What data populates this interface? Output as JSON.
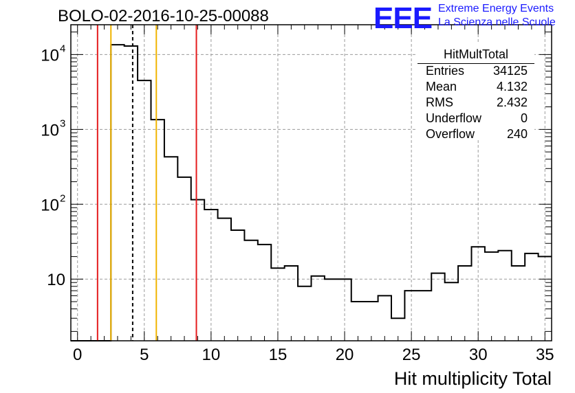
{
  "title": "BOLO-02-2016-10-25-00088",
  "logo": {
    "text": "EEE",
    "line1": "Extreme Energy Events",
    "line2": "La Scienza nelle Scuole",
    "color": "#1a1aff"
  },
  "stats": {
    "name": "HitMultTotal",
    "rows": [
      {
        "label": "Entries",
        "value": "34125"
      },
      {
        "label": "Mean",
        "value": "4.132"
      },
      {
        "label": "RMS",
        "value": "2.432"
      },
      {
        "label": "Underflow",
        "value": "0"
      },
      {
        "label": "Overflow",
        "value": "240"
      }
    ]
  },
  "chart_data": {
    "type": "histogram",
    "title": "BOLO-02-2016-10-25-00088",
    "xlabel": "Hit multiplicity Total",
    "ylabel": "",
    "yscale": "log",
    "xlim": [
      -0.5,
      35.5
    ],
    "ylim": [
      1.5,
      25000
    ],
    "grid": true,
    "x_ticks": [
      0,
      5,
      10,
      15,
      20,
      25,
      30,
      35
    ],
    "x_tick_labels": [
      "0",
      "5",
      "10",
      "15",
      "20",
      "25",
      "30",
      "35"
    ],
    "y_ticks": [
      10,
      100,
      1000,
      10000
    ],
    "y_tick_labels": [
      {
        "base": "10",
        "exp": ""
      },
      {
        "base": "10",
        "exp": "2"
      },
      {
        "base": "10",
        "exp": "3"
      },
      {
        "base": "10",
        "exp": "4"
      }
    ],
    "bin_edges_start": -0.5,
    "bin_width": 1,
    "counts": [
      0,
      0,
      0,
      13500,
      13000,
      4500,
      1350,
      430,
      230,
      115,
      85,
      65,
      45,
      33,
      29,
      14,
      15,
      8,
      11,
      10,
      10,
      5,
      5,
      6,
      3,
      7,
      7,
      12,
      9,
      15,
      27,
      23,
      24,
      15,
      22,
      20
    ],
    "lines": [
      {
        "x": 1.5,
        "color": "#e41a1c",
        "style": "solid"
      },
      {
        "x": 2.5,
        "color": "#f0b400",
        "style": "solid"
      },
      {
        "x": 4.13,
        "color": "#000000",
        "style": "dashed"
      },
      {
        "x": 5.9,
        "color": "#f0b400",
        "style": "solid"
      },
      {
        "x": 8.9,
        "color": "#e41a1c",
        "style": "solid"
      }
    ]
  }
}
